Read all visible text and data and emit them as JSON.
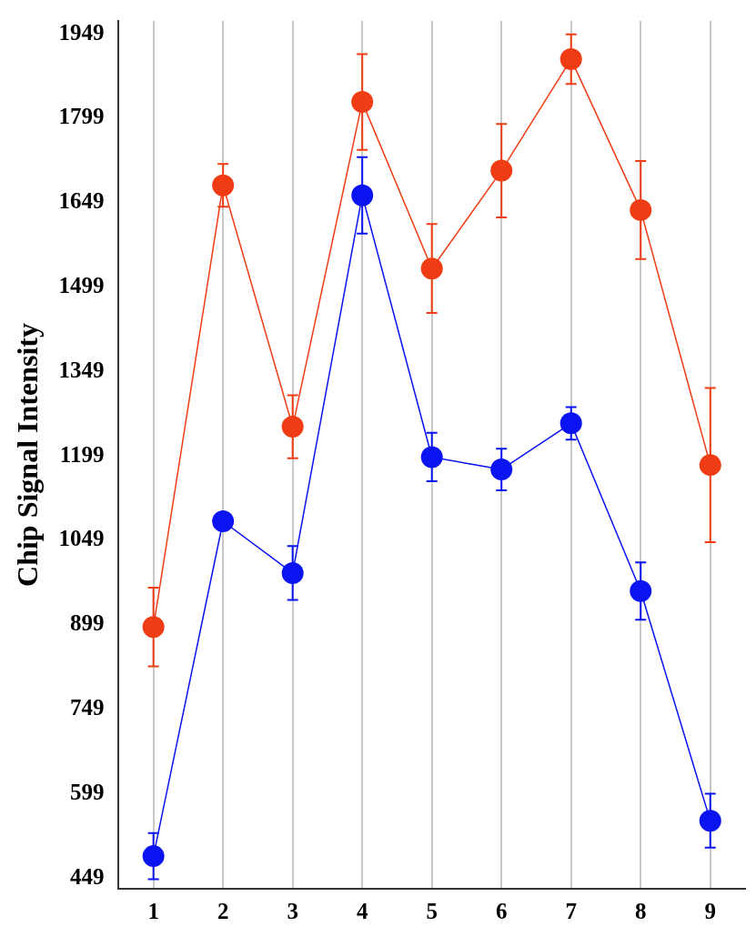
{
  "chart_data": {
    "type": "line",
    "ylabel": "Chip Signal Intensity",
    "categories": [
      "1",
      "2",
      "3",
      "4",
      "5",
      "6",
      "7",
      "8",
      "9"
    ],
    "series": [
      {
        "color": "#f03c14",
        "values": [
          895,
          1680,
          1251,
          1828,
          1532,
          1706,
          1904,
          1636,
          1183
        ],
        "errors": [
          70,
          38,
          56,
          85,
          79,
          83,
          44,
          87,
          137
        ]
      },
      {
        "color": "#0a14f0",
        "values": [
          488,
          1083,
          991,
          1662,
          1197,
          1175,
          1257,
          959,
          551
        ],
        "errors": [
          41,
          null,
          48,
          68,
          43,
          37,
          29,
          51,
          48
        ]
      }
    ],
    "ylim": [
      430,
      1972
    ],
    "yticks": [
      449,
      599,
      749,
      899,
      1049,
      1199,
      1349,
      1499,
      1649,
      1799,
      1949
    ],
    "grid": "x",
    "marker": "circle",
    "line_style": "solid"
  }
}
